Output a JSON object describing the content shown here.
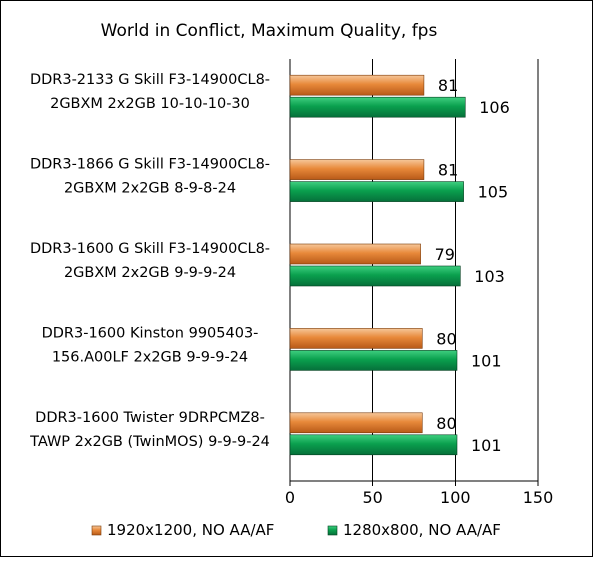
{
  "chart_data": {
    "type": "bar",
    "orientation": "horizontal",
    "title": "World in Conflict,  Maximum Quality,  fps",
    "categories": [
      [
        "DDR3-2133 G Skill F3-14900CL8-",
        "2GBXM 2x2GB 10-10-10-30"
      ],
      [
        "DDR3-1866 G Skill F3-14900CL8-",
        "2GBXM 2x2GB 8-9-8-24"
      ],
      [
        "DDR3-1600 G Skill F3-14900CL8-",
        "2GBXM 2x2GB 9-9-9-24"
      ],
      [
        "DDR3-1600 Kinston 9905403-",
        "156.A00LF 2x2GB 9-9-9-24"
      ],
      [
        "DDR3-1600 Twister 9DRPCMZ8-",
        "TAWP 2x2GB (TwinMOS) 9-9-9-24"
      ]
    ],
    "series": [
      {
        "name": "1920x1200, NO AA/AF",
        "color": "#e07a2c",
        "values": [
          81,
          81,
          79,
          80,
          80
        ]
      },
      {
        "name": "1280x800, NO AA/AF",
        "color": "#0a9a4a",
        "values": [
          106,
          105,
          103,
          101,
          101
        ]
      }
    ],
    "xlim": [
      0,
      150
    ],
    "xticks": [
      0,
      50,
      100,
      150
    ],
    "grid": true,
    "legend": "bottom"
  }
}
